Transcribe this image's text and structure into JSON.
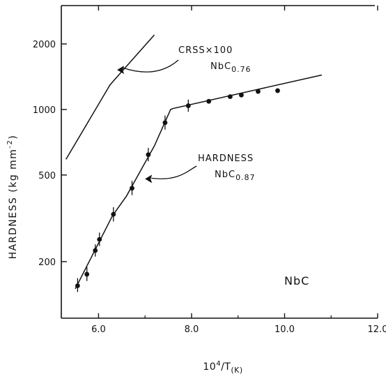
{
  "chart_data": {
    "type": "line",
    "x_label": {
      "base": "10",
      "exp": "4",
      "rest": "/T",
      "sub": "(K)"
    },
    "y_label": {
      "main": "HARDNESS  (kg  mm",
      "exp": "-2",
      "close": ")"
    },
    "x_axis": {
      "range": [
        5.2,
        12.0
      ],
      "ticks": [
        6.0,
        8.0,
        10.0,
        12.0
      ],
      "tick_labels": [
        "6.0",
        "8.0",
        "10.0",
        "12.0"
      ]
    },
    "y_axis": {
      "scale": "log",
      "range": [
        110,
        3000
      ],
      "ticks": [
        200,
        500,
        1000,
        2000
      ],
      "tick_labels": [
        "200",
        "500",
        "1000",
        "2000"
      ]
    },
    "series": [
      {
        "name": "CRSS×100 NbC0.76",
        "style": "line",
        "points": [
          [
            5.3,
            590
          ],
          [
            6.25,
            1300
          ],
          [
            7.2,
            2200
          ]
        ]
      },
      {
        "name": "HARDNESS NbC0.87",
        "style": "line+markers",
        "line_points": [
          [
            5.5,
            150
          ],
          [
            6.3,
            325
          ],
          [
            6.6,
            400
          ],
          [
            7.2,
            680
          ],
          [
            7.55,
            1000
          ],
          [
            7.6,
            1010
          ],
          [
            10.8,
            1440
          ]
        ],
        "markers": [
          {
            "x": 5.55,
            "y": 155,
            "err": [
              145,
              168
            ]
          },
          {
            "x": 5.75,
            "y": 175,
            "err": [
              163,
              189
            ]
          },
          {
            "x": 5.93,
            "y": 225,
            "err": [
              211,
              240
            ]
          },
          {
            "x": 6.02,
            "y": 253,
            "err": [
              236,
              272
            ]
          },
          {
            "x": 6.32,
            "y": 330,
            "err": [
              306,
              356
            ]
          },
          {
            "x": 6.72,
            "y": 435,
            "err": [
              404,
              470
            ]
          },
          {
            "x": 7.07,
            "y": 620,
            "err": [
              578,
              666
            ]
          },
          {
            "x": 7.43,
            "y": 870,
            "err": [
              808,
              938
            ]
          },
          {
            "x": 7.93,
            "y": 1040,
            "err": [
              976,
              1110
            ]
          },
          {
            "x": 8.37,
            "y": 1090,
            "err": null
          },
          {
            "x": 8.83,
            "y": 1145,
            "err": null
          },
          {
            "x": 9.07,
            "y": 1165,
            "err": null
          },
          {
            "x": 9.43,
            "y": 1210,
            "err": null
          },
          {
            "x": 9.85,
            "y": 1220,
            "err": null
          }
        ]
      }
    ],
    "annotations": [
      {
        "id": "crss",
        "line1": "CRSS×100",
        "line2_base": "NbC",
        "line2_sub": "0.76",
        "arrow_to": [
          6.4,
          1520
        ]
      },
      {
        "id": "hard",
        "line1": "HARDNESS",
        "line2_base": "NbC",
        "line2_sub": "0.87",
        "arrow_to": [
          7.0,
          480
        ]
      }
    ],
    "material_label": "NbC"
  }
}
